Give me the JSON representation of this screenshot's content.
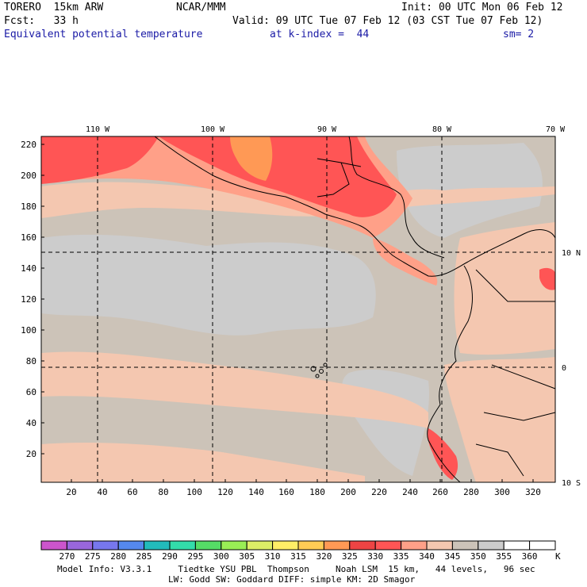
{
  "header": {
    "model": "TORERO  15km ARW",
    "org": "NCAR/MMM",
    "init": "Init: 00 UTC Mon 06 Feb 12",
    "fcst": "Fcst:   33 h",
    "valid": "Valid: 09 UTC Tue 07 Feb 12 (03 CST Tue 07 Feb 12)",
    "field": "Equivalent potential temperature",
    "level": "at k-index =  44",
    "smooth": "sm= 2"
  },
  "map": {
    "lon_labels": [
      "110 W",
      "100 W",
      "90 W",
      "80 W",
      "70 W"
    ],
    "lat_labels": [
      "10 N",
      "0",
      "10 S"
    ],
    "x_ticks": [
      "20",
      "40",
      "60",
      "80",
      "100",
      "120",
      "140",
      "160",
      "180",
      "200",
      "220",
      "240",
      "260",
      "280",
      "300",
      "320"
    ],
    "y_ticks": [
      "20",
      "40",
      "60",
      "80",
      "100",
      "120",
      "140",
      "160",
      "180",
      "200",
      "220"
    ],
    "islands_label": ""
  },
  "colorbar": {
    "unit": "K",
    "levels": [
      "270",
      "275",
      "280",
      "285",
      "290",
      "295",
      "300",
      "305",
      "310",
      "315",
      "320",
      "325",
      "330",
      "335",
      "340",
      "345",
      "350",
      "355",
      "360"
    ],
    "colors": [
      "#cc55cc",
      "#9966dd",
      "#7777ee",
      "#5588ee",
      "#22bbbb",
      "#33ddaa",
      "#55dd66",
      "#99ee55",
      "#ddee66",
      "#ffee66",
      "#ffcc55",
      "#ff9955",
      "#ee4444",
      "#ff5555",
      "#ffa088",
      "#f4c7b0",
      "#ccc3b8",
      "#cccccc",
      "#ffffff",
      "#ffffff"
    ]
  },
  "footer": {
    "line1": "Model Info: V3.3.1     Tiedtke YSU PBL  Thompson     Noah LSM  15 km,   44 levels,   96 sec",
    "line2": "LW: Godd SW: Goddard DIFF: simple KM: 2D Smagor"
  },
  "colors": {
    "tan": "#f4c7b0",
    "grayish": "#ccc3b8",
    "lightgray": "#cccccc",
    "salmon": "#ffa088",
    "red": "#ff5555",
    "orange": "#ff9955"
  }
}
